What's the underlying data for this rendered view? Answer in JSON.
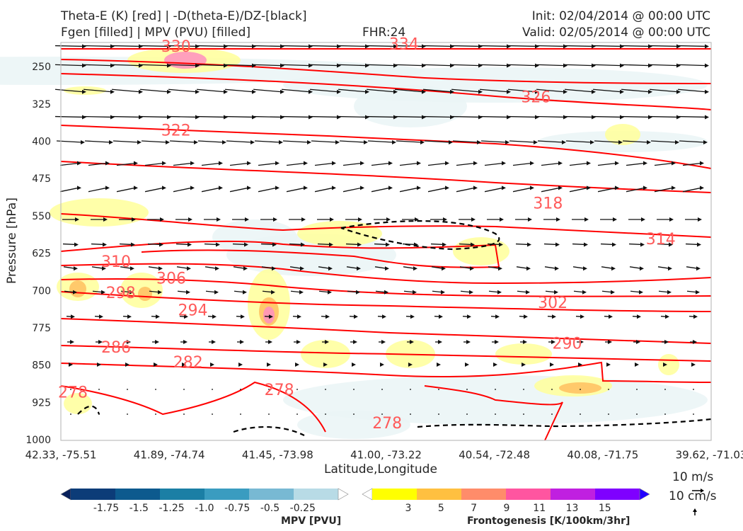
{
  "header": {
    "title_line1": "Theta-E (K) [red] | -D(theta-E)/DZ-[black]",
    "title_line2": "Fgen [filled] | MPV (PVU) [filled]",
    "fhr": "FHR:24",
    "init": "Init: 02/04/2014 @ 00:00 UTC",
    "valid": "Valid: 02/05/2014 @ 00:00 UTC"
  },
  "chart_data": {
    "type": "cross-section",
    "xlabel": "Latitude,Longitude",
    "ylabel": "Pressure [hPa]",
    "x_ticks": [
      "42.33, -75.51",
      "41.89, -74.74",
      "41.45, -73.98",
      "41.00, -73.22",
      "40.54, -72.48",
      "40.08, -71.75",
      "39.62, -71.03"
    ],
    "y_ticks": [
      250,
      325,
      400,
      475,
      550,
      625,
      700,
      775,
      850,
      925,
      1000
    ],
    "ylim": [
      1000,
      200
    ],
    "theta_e_contours": {
      "color": "#ff0000",
      "labels": [
        {
          "value": "334",
          "lat": 40.9,
          "p": 205
        },
        {
          "value": "330",
          "lat": 41.85,
          "p": 210
        },
        {
          "value": "326",
          "lat": 40.35,
          "p": 312
        },
        {
          "value": "322",
          "lat": 41.85,
          "p": 379
        },
        {
          "value": "318",
          "lat": 40.3,
          "p": 525
        },
        {
          "value": "314",
          "lat": 39.83,
          "p": 597
        },
        {
          "value": "310",
          "lat": 42.1,
          "p": 643
        },
        {
          "value": "306",
          "lat": 41.87,
          "p": 676
        },
        {
          "value": "302",
          "lat": 40.28,
          "p": 725
        },
        {
          "value": "298",
          "lat": 42.08,
          "p": 705
        },
        {
          "value": "294",
          "lat": 41.78,
          "p": 740
        },
        {
          "value": "290",
          "lat": 40.22,
          "p": 807
        },
        {
          "value": "286",
          "lat": 42.1,
          "p": 815
        },
        {
          "value": "282",
          "lat": 41.8,
          "p": 845
        },
        {
          "value": "278",
          "lat": 42.28,
          "p": 905
        },
        {
          "value": "278",
          "lat": 41.42,
          "p": 900
        },
        {
          "value": "278",
          "lat": 40.97,
          "p": 967
        }
      ]
    },
    "reference_vectors": [
      "10 m/s",
      "10 cm/s"
    ],
    "colorbars": [
      {
        "title": "MPV [PVU]",
        "ticks": [
          "-1.75",
          "-1.5",
          "-1.25",
          "-1.0",
          "-0.75",
          "-0.5",
          "-0.25"
        ],
        "colors": [
          "#08205a",
          "#0c3c78",
          "#0d5a8e",
          "#1b7fa5",
          "#3a9cc0",
          "#78b9d3",
          "#b8dbe6",
          "#ffffff"
        ]
      },
      {
        "title": "Frontogenesis [K/100km/3hr]",
        "ticks": [
          "3",
          "5",
          "7",
          "9",
          "11",
          "13",
          "15"
        ],
        "colors": [
          "#ffffff",
          "#ffff00",
          "#ffc040",
          "#ff8c6a",
          "#ff55a0",
          "#c020e0",
          "#7f00ff",
          "#2200ff"
        ]
      }
    ]
  }
}
